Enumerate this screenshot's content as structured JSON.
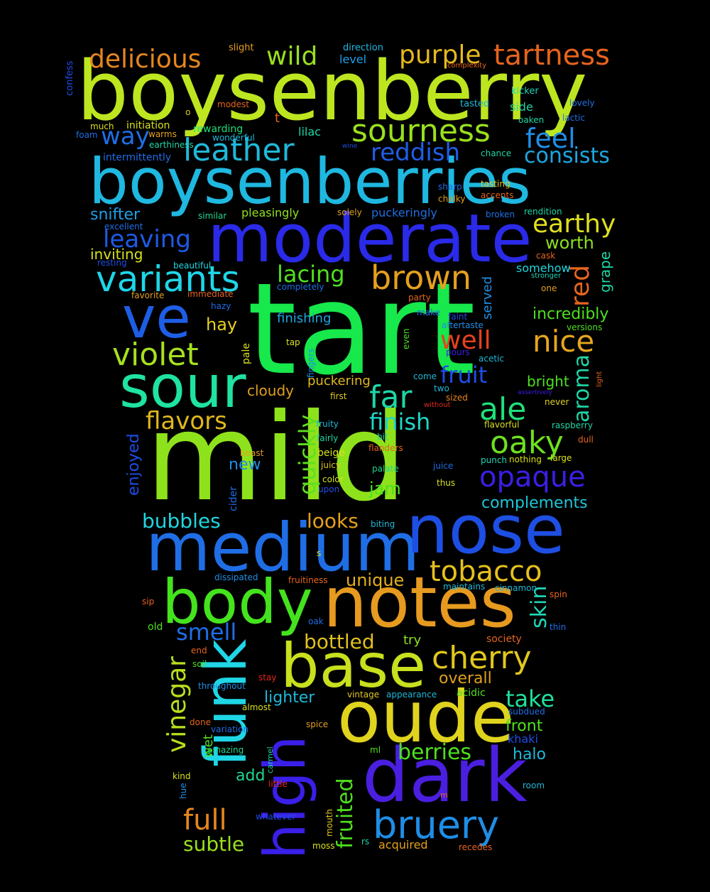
{
  "words": [
    {
      "text": "tart",
      "color": "#17e84b"
    },
    {
      "text": "mild",
      "color": "#8ee21c"
    },
    {
      "text": "boysenberry",
      "color": "#bde620"
    },
    {
      "text": "boysenberries",
      "color": "#1fb8e0"
    },
    {
      "text": "moderate",
      "color": "#2a2ae8"
    },
    {
      "text": "medium",
      "color": "#1f6ee6"
    },
    {
      "text": "notes",
      "color": "#e69a1f"
    },
    {
      "text": "nose",
      "color": "#1e4fe3"
    },
    {
      "text": "oude",
      "color": "#dfd31e"
    },
    {
      "text": "dark",
      "color": "#4a1fe0"
    },
    {
      "text": "funk",
      "color": "#1fd6e6"
    },
    {
      "text": "high",
      "color": "#3a1fe8"
    },
    {
      "text": "body",
      "color": "#44e31e"
    },
    {
      "text": "base",
      "color": "#c8e01e"
    },
    {
      "text": "sour",
      "color": "#1fe3a0"
    },
    {
      "text": "ve",
      "color": "#1e5ee6"
    },
    {
      "text": "variants",
      "color": "#1fd6e8"
    },
    {
      "text": "brown",
      "color": "#e6a01e"
    },
    {
      "text": "violet",
      "color": "#a6e01e"
    },
    {
      "text": "leather",
      "color": "#1fb8d8"
    },
    {
      "text": "sourness",
      "color": "#9ae01e"
    },
    {
      "text": "tartness",
      "color": "#e6641e"
    },
    {
      "text": "delicious",
      "color": "#e6861e"
    },
    {
      "text": "purple",
      "color": "#e6b81e"
    },
    {
      "text": "wild",
      "color": "#9ae01e"
    },
    {
      "text": "feel",
      "color": "#1f8ee6"
    },
    {
      "text": "reddish",
      "color": "#1f5ee6"
    },
    {
      "text": "consists",
      "color": "#1fa6e0"
    },
    {
      "text": "way",
      "color": "#1f6ee6"
    },
    {
      "text": "earthy",
      "color": "#dfe01e"
    },
    {
      "text": "leaving",
      "color": "#1f5ae6"
    },
    {
      "text": "lacing",
      "color": "#4ee01e"
    },
    {
      "text": "red",
      "color": "#e6661e"
    },
    {
      "text": "worth",
      "color": "#8ee01e"
    },
    {
      "text": "nice",
      "color": "#e6a61e"
    },
    {
      "text": "well",
      "color": "#e6401e"
    },
    {
      "text": "aroma",
      "color": "#1fd6a6"
    },
    {
      "text": "fruit",
      "color": "#1f4ee6"
    },
    {
      "text": "far",
      "color": "#1fd6a6"
    },
    {
      "text": "ale",
      "color": "#1fe07a"
    },
    {
      "text": "oaky",
      "color": "#6ee01e"
    },
    {
      "text": "opaque",
      "color": "#3a1fe6"
    },
    {
      "text": "flavors",
      "color": "#e0b81e"
    },
    {
      "text": "finish",
      "color": "#1fd6c6"
    },
    {
      "text": "quickly",
      "color": "#5ee01e"
    },
    {
      "text": "tobacco",
      "color": "#e6c01e"
    },
    {
      "text": "cherry",
      "color": "#e0c81e"
    },
    {
      "text": "bruery",
      "color": "#1f8ee6"
    },
    {
      "text": "vinegar",
      "color": "#b8e01e"
    },
    {
      "text": "smell",
      "color": "#1f6ee6"
    },
    {
      "text": "full",
      "color": "#e6861e"
    },
    {
      "text": "subtle",
      "color": "#9ae01e"
    },
    {
      "text": "fruited",
      "color": "#4ee01e"
    },
    {
      "text": "bottled",
      "color": "#e0c01e"
    },
    {
      "text": "skin",
      "color": "#1fd6b8"
    },
    {
      "text": "take",
      "color": "#1fe09a"
    },
    {
      "text": "berries",
      "color": "#4ee01e"
    },
    {
      "text": "looks",
      "color": "#e6a01e"
    },
    {
      "text": "bubbles",
      "color": "#1fd6e0"
    },
    {
      "text": "jam",
      "color": "#4ee01e"
    },
    {
      "text": "complements",
      "color": "#1fc6d8"
    },
    {
      "text": "unique",
      "color": "#e6b01e"
    },
    {
      "text": "snifter",
      "color": "#1f9ee6"
    },
    {
      "text": "inviting",
      "color": "#d8e01e"
    },
    {
      "text": "hay",
      "color": "#e6d01e"
    },
    {
      "text": "enjoyed",
      "color": "#1f4ee6"
    },
    {
      "text": "cloudy",
      "color": "#e0a01e"
    },
    {
      "text": "incredibly",
      "color": "#4ee01e"
    },
    {
      "text": "bright",
      "color": "#4ee01e"
    },
    {
      "text": "finishing",
      "color": "#1fa6e0"
    },
    {
      "text": "pleasingly",
      "color": "#8ee01e"
    },
    {
      "text": "puckering",
      "color": "#e0b81e"
    },
    {
      "text": "puckeringly",
      "color": "#1f6ee0"
    },
    {
      "text": "new",
      "color": "#1f8ee6"
    },
    {
      "text": "overall",
      "color": "#e0a01e"
    },
    {
      "text": "lighter",
      "color": "#1fb8d8"
    },
    {
      "text": "front",
      "color": "#4ee01e"
    },
    {
      "text": "halo",
      "color": "#1fb8d8"
    },
    {
      "text": "khaki",
      "color": "#1f4ee6"
    },
    {
      "text": "add",
      "color": "#1fd68e"
    },
    {
      "text": "acquired",
      "color": "#e6a01e"
    },
    {
      "text": "try",
      "color": "#8ee01e"
    },
    {
      "text": "grape",
      "color": "#1fd6a6"
    },
    {
      "text": "served",
      "color": "#1f8ee6"
    },
    {
      "text": "somehow",
      "color": "#1fd6e0"
    },
    {
      "text": "lilac",
      "color": "#1fd6a6"
    },
    {
      "text": "side",
      "color": "#1fd6a6"
    },
    {
      "text": "level",
      "color": "#1f9ee6"
    },
    {
      "text": "intermittently",
      "color": "#1f6ee6"
    },
    {
      "text": "rewarding",
      "color": "#1fe07a"
    },
    {
      "text": "initiation",
      "color": "#d8e01e"
    },
    {
      "text": "direction",
      "color": "#1fb8e0"
    },
    {
      "text": "slight",
      "color": "#e6a01e"
    },
    {
      "text": "confess",
      "color": "#1f4ee6"
    },
    {
      "text": "complexity",
      "color": "#e6641e"
    },
    {
      "text": "kicker",
      "color": "#1fd6b8"
    },
    {
      "text": "lovely",
      "color": "#1f6ee6"
    },
    {
      "text": "tasted",
      "color": "#1fb8d8"
    },
    {
      "text": "oaken",
      "color": "#1fd6a6"
    },
    {
      "text": "lactic",
      "color": "#1f6ee6"
    },
    {
      "text": "modest",
      "color": "#e6641e"
    },
    {
      "text": "much",
      "color": "#d8e01e"
    },
    {
      "text": "foam",
      "color": "#1f6ee6"
    },
    {
      "text": "warms",
      "color": "#e6a01e"
    },
    {
      "text": "wonderful",
      "color": "#1fb8d8"
    },
    {
      "text": "earthiness",
      "color": "#1fd6a6"
    },
    {
      "text": "wine",
      "color": "#1f4ee6"
    },
    {
      "text": "chance",
      "color": "#1fd6a6"
    },
    {
      "text": "tasting",
      "color": "#e0c81e"
    },
    {
      "text": "sharp",
      "color": "#1f6ee6"
    },
    {
      "text": "accents",
      "color": "#e6641e"
    },
    {
      "text": "chalky",
      "color": "#e0a01e"
    },
    {
      "text": "broken",
      "color": "#1f6ee6"
    },
    {
      "text": "rendition",
      "color": "#1fd6a6"
    },
    {
      "text": "excellent",
      "color": "#1f6ee6"
    },
    {
      "text": "similar",
      "color": "#1fd68e"
    },
    {
      "text": "solely",
      "color": "#e0a01e"
    },
    {
      "text": "resting",
      "color": "#1f4ee6"
    },
    {
      "text": "beautiful",
      "color": "#1fd6e0"
    },
    {
      "text": "favorite",
      "color": "#e0a01e"
    },
    {
      "text": "immediate",
      "color": "#e6641e"
    },
    {
      "text": "completely",
      "color": "#1f6ee6"
    },
    {
      "text": "party",
      "color": "#e6641e"
    },
    {
      "text": "cask",
      "color": "#e6641e"
    },
    {
      "text": "stronger",
      "color": "#1fd6b8"
    },
    {
      "text": "one",
      "color": "#e0a01e"
    },
    {
      "text": "hazy",
      "color": "#1f6ee6"
    },
    {
      "text": "make",
      "color": "#1f6ee6"
    },
    {
      "text": "faint",
      "color": "#1f4ee6"
    },
    {
      "text": "aftertaste",
      "color": "#1f8ee6"
    },
    {
      "text": "versions",
      "color": "#4ee01e"
    },
    {
      "text": "tap",
      "color": "#d8e01e"
    },
    {
      "text": "fingers",
      "color": "#1f8ee6"
    },
    {
      "text": "even",
      "color": "#4ee01e"
    },
    {
      "text": "pours",
      "color": "#3a1fe6"
    },
    {
      "text": "acetic",
      "color": "#1fb8d8"
    },
    {
      "text": "light",
      "color": "#e6641e"
    },
    {
      "text": "pale",
      "color": "#d8e01e"
    },
    {
      "text": "come",
      "color": "#1fb8d8"
    },
    {
      "text": "two",
      "color": "#1fb8d8"
    },
    {
      "text": "assertively",
      "color": "#3a1fe6"
    },
    {
      "text": "first",
      "color": "#e0c81e"
    },
    {
      "text": "without",
      "color": "#e6281e"
    },
    {
      "text": "sized",
      "color": "#e6861e"
    },
    {
      "text": "never",
      "color": "#e0d01e"
    },
    {
      "text": "fruity",
      "color": "#1fb8d8"
    },
    {
      "text": "fairly",
      "color": "#1fd6a6"
    },
    {
      "text": "bit",
      "color": "#1fd6a6"
    },
    {
      "text": "flavorful",
      "color": "#d8e01e"
    },
    {
      "text": "raspberry",
      "color": "#1fd6a6"
    },
    {
      "text": "dull",
      "color": "#e6641e"
    },
    {
      "text": "beast",
      "color": "#e6a01e"
    },
    {
      "text": "flanders",
      "color": "#e6641e"
    },
    {
      "text": "beige",
      "color": "#d8e01e"
    },
    {
      "text": "punch",
      "color": "#1fd6b8"
    },
    {
      "text": "nothing",
      "color": "#d8e01e"
    },
    {
      "text": "large",
      "color": "#d8e01e"
    },
    {
      "text": "juicy",
      "color": "#e0c81e"
    },
    {
      "text": "palate",
      "color": "#1fd68e"
    },
    {
      "text": "juice",
      "color": "#1f6ee6"
    },
    {
      "text": "color",
      "color": "#d8e01e"
    },
    {
      "text": "upon",
      "color": "#1f4ee6"
    },
    {
      "text": "thus",
      "color": "#d8e01e"
    },
    {
      "text": "cider",
      "color": "#1f6ee6"
    },
    {
      "text": "biting",
      "color": "#1fb8d8"
    },
    {
      "text": "s",
      "color": "#d8e01e"
    },
    {
      "text": "dissipated",
      "color": "#1f8ee6"
    },
    {
      "text": "fruitiness",
      "color": "#e6641e"
    },
    {
      "text": "maintains",
      "color": "#1fb8d8"
    },
    {
      "text": "cinnamon",
      "color": "#1fb8d8"
    },
    {
      "text": "spin",
      "color": "#e6641e"
    },
    {
      "text": "sip",
      "color": "#e6641e"
    },
    {
      "text": "oak",
      "color": "#1f6ee6"
    },
    {
      "text": "thin",
      "color": "#1f6ee6"
    },
    {
      "text": "old",
      "color": "#4ee01e"
    },
    {
      "text": "society",
      "color": "#e6641e"
    },
    {
      "text": "end",
      "color": "#e6641e"
    },
    {
      "text": "soil",
      "color": "#4ee01e"
    },
    {
      "text": "stay",
      "color": "#e6281e"
    },
    {
      "text": "throughout",
      "color": "#1f8ee6"
    },
    {
      "text": "vintage",
      "color": "#e0c81e"
    },
    {
      "text": "appearance",
      "color": "#1fb8d8"
    },
    {
      "text": "acidic",
      "color": "#4ee01e"
    },
    {
      "text": "almost",
      "color": "#d8e01e"
    },
    {
      "text": "subdued",
      "color": "#1f6ee6"
    },
    {
      "text": "done",
      "color": "#e6641e"
    },
    {
      "text": "spice",
      "color": "#e6a01e"
    },
    {
      "text": "variation",
      "color": "#1f6ee6"
    },
    {
      "text": "amazing",
      "color": "#1fd68e"
    },
    {
      "text": "carmel",
      "color": "#1fd6a6"
    },
    {
      "text": "ml",
      "color": "#4ee01e"
    },
    {
      "text": "kind",
      "color": "#d8e01e"
    },
    {
      "text": "hue",
      "color": "#1f8ee6"
    },
    {
      "text": "little",
      "color": "#e6281e"
    },
    {
      "text": "room",
      "color": "#1fb8d8"
    },
    {
      "text": "whatever",
      "color": "#1f4ee6"
    },
    {
      "text": "mouth",
      "color": "#e0c81e"
    },
    {
      "text": "moss",
      "color": "#d8e01e"
    },
    {
      "text": "rs",
      "color": "#1fd6a6"
    },
    {
      "text": "recedes",
      "color": "#e6641e"
    },
    {
      "text": "wet",
      "color": "#4ee01e"
    },
    {
      "text": "o",
      "color": "#e0c81e"
    },
    {
      "text": "t",
      "color": "#e6641e"
    },
    {
      "text": "m",
      "color": "#e6641e"
    }
  ]
}
